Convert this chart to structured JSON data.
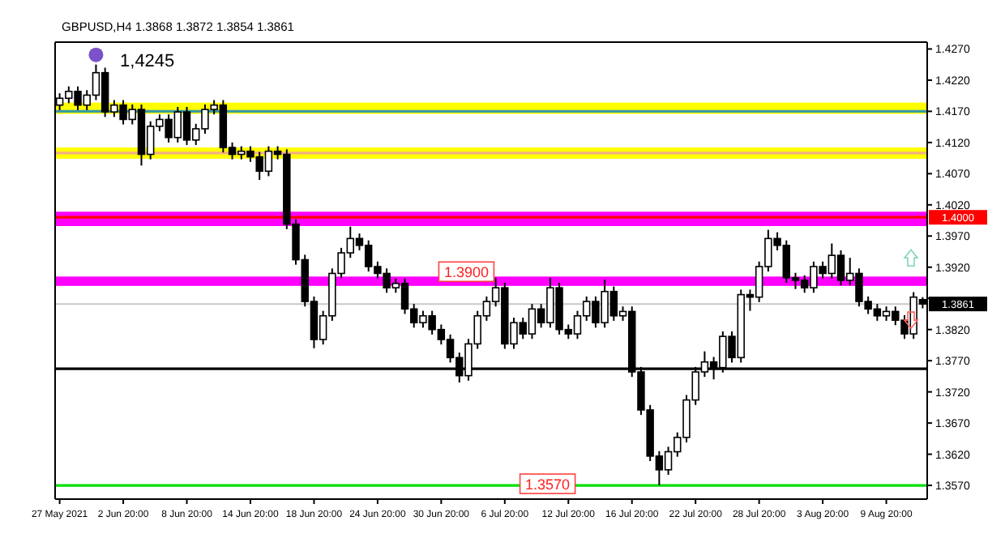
{
  "chart_data": {
    "type": "candlestick",
    "title": "GBPUSD,H4  1.3868 1.3872 1.3854 1.3861",
    "color": "#000000",
    "categories": [
      "27 May 2021",
      null,
      null,
      null,
      null,
      null,
      null,
      "2 Jun 20:00",
      null,
      null,
      null,
      null,
      null,
      null,
      "8 Jun 20:00",
      null,
      null,
      null,
      null,
      null,
      null,
      "14 Jun 20:00",
      null,
      null,
      null,
      null,
      null,
      null,
      "18 Jun 20:00",
      null,
      null,
      null,
      null,
      null,
      null,
      "24 Jun 20:00",
      null,
      null,
      null,
      null,
      null,
      null,
      "30 Jun 20:00",
      null,
      null,
      null,
      null,
      null,
      null,
      "6 Jul 20:00",
      null,
      null,
      null,
      null,
      null,
      null,
      "12 Jul 20:00",
      null,
      null,
      null,
      null,
      null,
      null,
      "16 Jul 20:00",
      null,
      null,
      null,
      null,
      null,
      null,
      "22 Jul 20:00",
      null,
      null,
      null,
      null,
      null,
      null,
      "28 Jul 20:00",
      null,
      null,
      null,
      null,
      null,
      null,
      "3 Aug 20:00",
      null,
      null,
      null,
      null,
      null,
      null,
      "9 Aug 20:00",
      null,
      null,
      null,
      null
    ],
    "ohlc": [
      [
        1.418,
        1.4199,
        1.4172,
        1.4191
      ],
      [
        1.4191,
        1.421,
        1.4183,
        1.4202
      ],
      [
        1.4202,
        1.421,
        1.4172,
        1.418
      ],
      [
        1.418,
        1.4204,
        1.4172,
        1.4196
      ],
      [
        1.4196,
        1.4245,
        1.4188,
        1.4232
      ],
      [
        1.4232,
        1.424,
        1.4161,
        1.4169
      ],
      [
        1.4169,
        1.4188,
        1.4161,
        1.418
      ],
      [
        1.418,
        1.4188,
        1.4149,
        1.4157
      ],
      [
        1.4157,
        1.4181,
        1.4149,
        1.4173
      ],
      [
        1.4173,
        1.4181,
        1.4083,
        1.4101
      ],
      [
        1.4101,
        1.4154,
        1.4093,
        1.4146
      ],
      [
        1.4146,
        1.4165,
        1.4138,
        1.4157
      ],
      [
        1.4157,
        1.4165,
        1.412,
        1.4128
      ],
      [
        1.4128,
        1.4177,
        1.412,
        1.4169
      ],
      [
        1.4169,
        1.4177,
        1.4116,
        1.4124
      ],
      [
        1.4124,
        1.415,
        1.4116,
        1.4142
      ],
      [
        1.4142,
        1.4181,
        1.4134,
        1.4173
      ],
      [
        1.4173,
        1.4188,
        1.4165,
        1.418
      ],
      [
        1.418,
        1.4188,
        1.4104,
        1.4112
      ],
      [
        1.4112,
        1.412,
        1.4093,
        1.4101
      ],
      [
        1.4101,
        1.4114,
        1.4093,
        1.4106
      ],
      [
        1.4106,
        1.4114,
        1.4089,
        1.4097
      ],
      [
        1.4097,
        1.4105,
        1.406,
        1.4074
      ],
      [
        1.4074,
        1.4114,
        1.4066,
        1.4106
      ],
      [
        1.4106,
        1.4114,
        1.4093,
        1.4101
      ],
      [
        1.4101,
        1.4109,
        1.3981,
        1.3989
      ],
      [
        1.3989,
        1.3997,
        1.3924,
        1.3932
      ],
      [
        1.3932,
        1.394,
        1.3857,
        1.3865
      ],
      [
        1.3865,
        1.3873,
        1.379,
        1.3804
      ],
      [
        1.3804,
        1.385,
        1.3796,
        1.3842
      ],
      [
        1.3842,
        1.3918,
        1.3834,
        1.391
      ],
      [
        1.391,
        1.3951,
        1.3902,
        1.3943
      ],
      [
        1.3943,
        1.3985,
        1.3935,
        1.3966
      ],
      [
        1.3966,
        1.3974,
        1.3947,
        1.3955
      ],
      [
        1.3955,
        1.3963,
        1.3913,
        1.3921
      ],
      [
        1.3921,
        1.3929,
        1.3902,
        1.391
      ],
      [
        1.391,
        1.3918,
        1.3879,
        1.3887
      ],
      [
        1.3887,
        1.3902,
        1.3879,
        1.3894
      ],
      [
        1.3894,
        1.3902,
        1.3845,
        1.3853
      ],
      [
        1.3853,
        1.3861,
        1.3823,
        1.3831
      ],
      [
        1.3831,
        1.385,
        1.3823,
        1.3842
      ],
      [
        1.3842,
        1.385,
        1.3812,
        1.382
      ],
      [
        1.382,
        1.3828,
        1.3796,
        1.3804
      ],
      [
        1.3804,
        1.3812,
        1.3767,
        1.3775
      ],
      [
        1.3775,
        1.3783,
        1.3735,
        1.3746
      ],
      [
        1.3746,
        1.3805,
        1.3738,
        1.3797
      ],
      [
        1.3797,
        1.385,
        1.3789,
        1.3842
      ],
      [
        1.3842,
        1.3873,
        1.3834,
        1.3865
      ],
      [
        1.3865,
        1.3903,
        1.3857,
        1.3887
      ],
      [
        1.3887,
        1.3895,
        1.3789,
        1.3797
      ],
      [
        1.3797,
        1.3839,
        1.3789,
        1.3831
      ],
      [
        1.3831,
        1.3839,
        1.3805,
        1.3813
      ],
      [
        1.3813,
        1.3861,
        1.3805,
        1.3853
      ],
      [
        1.3853,
        1.3861,
        1.3823,
        1.3831
      ],
      [
        1.3831,
        1.3903,
        1.3823,
        1.3887
      ],
      [
        1.3887,
        1.3895,
        1.3812,
        1.382
      ],
      [
        1.382,
        1.3828,
        1.3805,
        1.3813
      ],
      [
        1.3813,
        1.385,
        1.3805,
        1.3842
      ],
      [
        1.3842,
        1.3873,
        1.3834,
        1.3865
      ],
      [
        1.3865,
        1.3873,
        1.3823,
        1.3831
      ],
      [
        1.3831,
        1.39,
        1.3823,
        1.3881
      ],
      [
        1.3881,
        1.3889,
        1.3834,
        1.3842
      ],
      [
        1.3842,
        1.3857,
        1.3834,
        1.3849
      ],
      [
        1.3849,
        1.3857,
        1.3744,
        1.3752
      ],
      [
        1.3752,
        1.376,
        1.3683,
        1.3691
      ],
      [
        1.3691,
        1.3699,
        1.3609,
        1.3617
      ],
      [
        1.3617,
        1.3625,
        1.357,
        1.3595
      ],
      [
        1.3595,
        1.3632,
        1.3587,
        1.3624
      ],
      [
        1.3624,
        1.3655,
        1.3616,
        1.3647
      ],
      [
        1.3647,
        1.3715,
        1.3639,
        1.3707
      ],
      [
        1.3707,
        1.376,
        1.3699,
        1.3752
      ],
      [
        1.3752,
        1.3785,
        1.3744,
        1.3768
      ],
      [
        1.3768,
        1.3776,
        1.374,
        1.3759
      ],
      [
        1.3759,
        1.3817,
        1.3751,
        1.3809
      ],
      [
        1.3809,
        1.3817,
        1.3767,
        1.3775
      ],
      [
        1.3775,
        1.3884,
        1.3767,
        1.3876
      ],
      [
        1.3876,
        1.3884,
        1.385,
        1.3872
      ],
      [
        1.3872,
        1.3929,
        1.3864,
        1.3921
      ],
      [
        1.3921,
        1.398,
        1.3913,
        1.3966
      ],
      [
        1.3966,
        1.3976,
        1.3947,
        1.3955
      ],
      [
        1.3955,
        1.3963,
        1.3895,
        1.3903
      ],
      [
        1.3903,
        1.3911,
        1.3885,
        1.3899
      ],
      [
        1.3899,
        1.3907,
        1.3879,
        1.3887
      ],
      [
        1.3887,
        1.3929,
        1.3879,
        1.3921
      ],
      [
        1.3921,
        1.3929,
        1.3902,
        1.391
      ],
      [
        1.391,
        1.3958,
        1.3902,
        1.3939
      ],
      [
        1.3939,
        1.3947,
        1.3891,
        1.3899
      ],
      [
        1.3899,
        1.3935,
        1.3891,
        1.391
      ],
      [
        1.391,
        1.3918,
        1.3857,
        1.3865
      ],
      [
        1.3865,
        1.3873,
        1.3845,
        1.3853
      ],
      [
        1.3853,
        1.3861,
        1.3834,
        1.3842
      ],
      [
        1.3842,
        1.3857,
        1.3834,
        1.3849
      ],
      [
        1.3849,
        1.3857,
        1.3827,
        1.3835
      ],
      [
        1.3835,
        1.3843,
        1.3805,
        1.3813
      ],
      [
        1.3813,
        1.388,
        1.3805,
        1.3872
      ],
      [
        1.3868,
        1.3872,
        1.3854,
        1.3861
      ]
    ],
    "ylim": [
      1.3548,
      1.4281
    ],
    "yticks": [
      {
        "value": 1.357,
        "label": "1.3570"
      },
      {
        "value": 1.362,
        "label": "1.3620"
      },
      {
        "value": 1.367,
        "label": "1.3670"
      },
      {
        "value": 1.372,
        "label": "1.3720"
      },
      {
        "value": 1.377,
        "label": "1.3770"
      },
      {
        "value": 1.382,
        "label": "1.3820"
      },
      {
        "value": 1.387,
        "label": null
      },
      {
        "value": 1.392,
        "label": "1.3920"
      },
      {
        "value": 1.397,
        "label": "1.3970"
      },
      {
        "value": 1.402,
        "label": "1.4020"
      },
      {
        "value": 1.407,
        "label": "1.4070"
      },
      {
        "value": 1.412,
        "label": "1.4120"
      },
      {
        "value": 1.417,
        "label": "1.4170"
      },
      {
        "value": 1.422,
        "label": "1.4220"
      },
      {
        "value": 1.427,
        "label": "1.4270"
      }
    ],
    "ref_lines": [
      {
        "axis": "y",
        "value": 1.417,
        "color": "#3a9ca0"
      },
      {
        "axis": "y",
        "value": 1.4103,
        "color": "#f4b183"
      },
      {
        "axis": "y",
        "value": 1.4,
        "color": "#ff0000",
        "label": "1.4000"
      },
      {
        "axis": "y",
        "value": 1.3861,
        "color": "#c8c8c8",
        "label": "1.3861"
      },
      {
        "axis": "y",
        "value": 1.3757,
        "color": "#000000"
      },
      {
        "axis": "y",
        "value": 1.357,
        "color": "#00e000",
        "label": "1.3570"
      }
    ],
    "bands": [
      {
        "axis": "y",
        "from": 1.4166,
        "to": 1.4184,
        "color": "#ffff00"
      },
      {
        "axis": "y",
        "from": 1.4094,
        "to": 1.4112,
        "color": "#ffff00"
      },
      {
        "axis": "y",
        "from": 1.3986,
        "to": 1.4009,
        "color": "#ff00ff"
      },
      {
        "axis": "y",
        "from": 1.389,
        "to": 1.3905,
        "color": "#ff00ff",
        "label": "1.3900"
      }
    ],
    "annotations": [
      "1,4245"
    ],
    "grid": false
  }
}
